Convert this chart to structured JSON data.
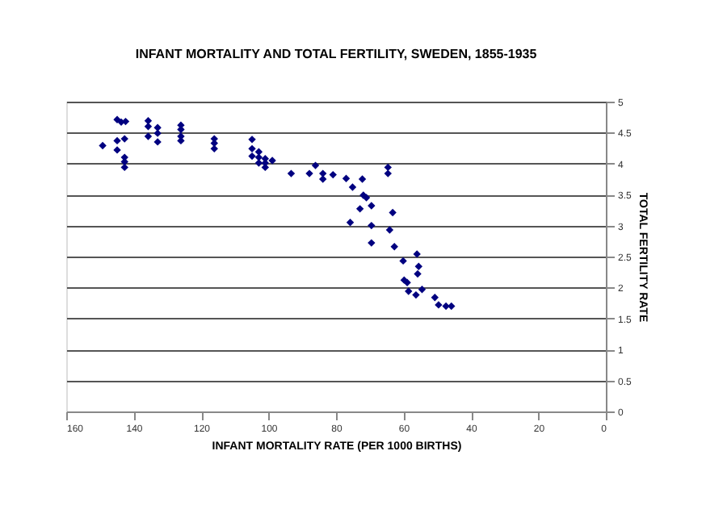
{
  "chart_data": {
    "type": "scatter",
    "title": "INFANT MORTALITY AND TOTAL FERTILITY, SWEDEN, 1855-1935",
    "xlabel": "INFANT MORTALITY RATE (PER 1000 BIRTHS)",
    "ylabel": "TOTAL FERTILITY RATE",
    "series": [
      {
        "color": "#000080",
        "x": [
          149.2,
          144.9,
          143.7,
          142.4,
          144.9,
          142.7,
          144.9,
          142.7,
          142.7,
          142.7,
          135.7,
          135.7,
          135.7,
          132.9,
          132.9,
          132.9,
          126,
          126,
          126,
          126,
          116.1,
          116.1,
          116.1,
          104.9,
          104.9,
          104.9,
          102.9,
          102.9,
          102.9,
          101,
          101,
          101,
          98.9,
          93.3,
          87.9,
          86.1,
          83.9,
          83.9,
          80.9,
          77.0,
          75.1,
          75.8,
          72.2,
          72.9,
          71.9,
          71.0,
          69.5,
          69.5,
          69.5,
          64.6,
          64.6,
          63.2,
          64.1,
          62.7,
          60.1,
          59.8,
          58.9,
          58.5,
          56.3,
          56.0,
          55.5,
          55.8,
          54.5,
          50.7,
          49.6,
          47.4,
          45.8
        ],
        "values": [
          4.29,
          4.71,
          4.67,
          4.68,
          4.37,
          4.4,
          4.22,
          4.1,
          4.03,
          3.94,
          4.69,
          4.6,
          4.44,
          4.58,
          4.49,
          4.35,
          4.62,
          4.55,
          4.44,
          4.37,
          4.4,
          4.33,
          4.24,
          4.39,
          4.24,
          4.12,
          4.19,
          4.1,
          4.01,
          4.08,
          4.01,
          3.94,
          4.05,
          3.84,
          3.84,
          3.97,
          3.84,
          3.75,
          3.82,
          3.76,
          3.62,
          3.05,
          3.75,
          3.27,
          3.49,
          3.45,
          3.32,
          3.0,
          2.72,
          3.94,
          3.84,
          3.21,
          2.93,
          2.66,
          2.43,
          2.12,
          2.08,
          1.94,
          1.88,
          2.54,
          2.34,
          2.22,
          1.97,
          1.84,
          1.72,
          1.7,
          1.7
        ]
      }
    ],
    "xlim": [
      160,
      0
    ],
    "xticks": [
      160,
      140,
      120,
      100,
      80,
      60,
      40,
      20,
      0
    ],
    "ylim": [
      0,
      5
    ],
    "yticks": [
      0,
      0.5,
      1,
      1.5,
      2,
      2.5,
      3,
      3.5,
      4,
      4.5,
      5
    ],
    "grid": "y",
    "marker": "diamond"
  }
}
